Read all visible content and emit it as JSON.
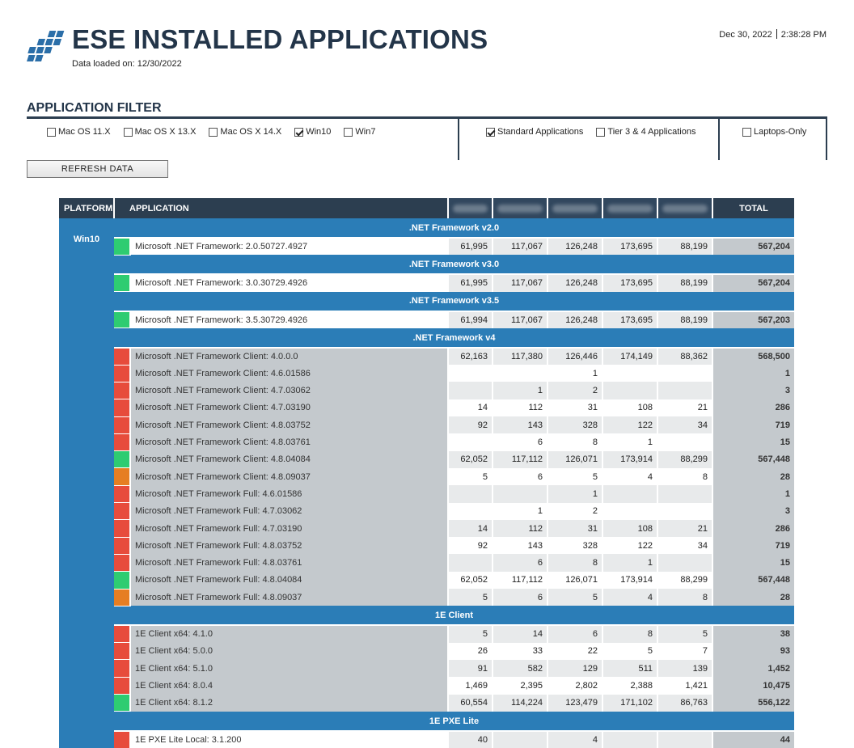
{
  "header": {
    "title": "ESE INSTALLED APPLICATIONS",
    "loaded": "Data loaded on: 12/30/2022",
    "date": "Dec 30, 2022",
    "time": "2:38:28 PM"
  },
  "filter": {
    "heading": "APPLICATION FILTER",
    "os": [
      {
        "label": "Mac OS 11.X",
        "checked": false
      },
      {
        "label": "Mac OS X 13.X",
        "checked": false
      },
      {
        "label": "Mac OS X 14.X",
        "checked": false
      },
      {
        "label": "Win10",
        "checked": true
      },
      {
        "label": "Win7",
        "checked": false
      }
    ],
    "app_types": [
      {
        "label": "Standard Applications",
        "checked": true
      },
      {
        "label": "Tier 3 & 4 Applications",
        "checked": false
      }
    ],
    "devices": [
      {
        "label": "Laptops-Only",
        "checked": false
      }
    ]
  },
  "refresh_label": "REFRESH  DATA",
  "table": {
    "columns": {
      "platform": "PLATFORM",
      "application": "APPLICATION",
      "total": "TOTAL"
    },
    "platform": "Win10",
    "status_colors": {
      "red": "#e74c3c",
      "green": "#2ecc71",
      "orange": "#e67e22"
    },
    "groups": [
      {
        "name": ".NET Framework v2.0",
        "rows": [
          {
            "status": "green",
            "app": "Microsoft .NET Framework: 2.0.50727.4927",
            "values": [
              "61,995",
              "117,067",
              "126,248",
              "173,695",
              "88,199"
            ],
            "total": "567,204"
          }
        ]
      },
      {
        "name": ".NET Framework v3.0",
        "rows": [
          {
            "status": "green",
            "app": "Microsoft .NET Framework: 3.0.30729.4926",
            "values": [
              "61,995",
              "117,067",
              "126,248",
              "173,695",
              "88,199"
            ],
            "total": "567,204"
          }
        ]
      },
      {
        "name": ".NET Framework v3.5",
        "rows": [
          {
            "status": "green",
            "app": "Microsoft .NET Framework: 3.5.30729.4926",
            "values": [
              "61,994",
              "117,067",
              "126,248",
              "173,695",
              "88,199"
            ],
            "total": "567,203"
          }
        ]
      },
      {
        "name": ".NET Framework v4",
        "rows": [
          {
            "status": "red",
            "app": "Microsoft .NET Framework Client: 4.0.0.0",
            "values": [
              "62,163",
              "117,380",
              "126,446",
              "174,149",
              "88,362"
            ],
            "total": "568,500"
          },
          {
            "status": "red",
            "app": "Microsoft .NET Framework Client: 4.6.01586",
            "values": [
              "",
              "",
              "1",
              "",
              ""
            ],
            "total": "1"
          },
          {
            "status": "red",
            "app": "Microsoft .NET Framework Client: 4.7.03062",
            "values": [
              "",
              "1",
              "2",
              "",
              ""
            ],
            "total": "3"
          },
          {
            "status": "red",
            "app": "Microsoft .NET Framework Client: 4.7.03190",
            "values": [
              "14",
              "112",
              "31",
              "108",
              "21"
            ],
            "total": "286"
          },
          {
            "status": "red",
            "app": "Microsoft .NET Framework Client: 4.8.03752",
            "values": [
              "92",
              "143",
              "328",
              "122",
              "34"
            ],
            "total": "719"
          },
          {
            "status": "red",
            "app": "Microsoft .NET Framework Client: 4.8.03761",
            "values": [
              "",
              "6",
              "8",
              "1",
              ""
            ],
            "total": "15"
          },
          {
            "status": "green",
            "app": "Microsoft .NET Framework Client: 4.8.04084",
            "values": [
              "62,052",
              "117,112",
              "126,071",
              "173,914",
              "88,299"
            ],
            "total": "567,448"
          },
          {
            "status": "orange",
            "app": "Microsoft .NET Framework Client: 4.8.09037",
            "values": [
              "5",
              "6",
              "5",
              "4",
              "8"
            ],
            "total": "28"
          },
          {
            "status": "red",
            "app": "Microsoft .NET Framework Full: 4.6.01586",
            "values": [
              "",
              "",
              "1",
              "",
              ""
            ],
            "total": "1"
          },
          {
            "status": "red",
            "app": "Microsoft .NET Framework Full: 4.7.03062",
            "values": [
              "",
              "1",
              "2",
              "",
              ""
            ],
            "total": "3"
          },
          {
            "status": "red",
            "app": "Microsoft .NET Framework Full: 4.7.03190",
            "values": [
              "14",
              "112",
              "31",
              "108",
              "21"
            ],
            "total": "286"
          },
          {
            "status": "red",
            "app": "Microsoft .NET Framework Full: 4.8.03752",
            "values": [
              "92",
              "143",
              "328",
              "122",
              "34"
            ],
            "total": "719"
          },
          {
            "status": "red",
            "app": "Microsoft .NET Framework Full: 4.8.03761",
            "values": [
              "",
              "6",
              "8",
              "1",
              ""
            ],
            "total": "15"
          },
          {
            "status": "green",
            "app": "Microsoft .NET Framework Full: 4.8.04084",
            "values": [
              "62,052",
              "117,112",
              "126,071",
              "173,914",
              "88,299"
            ],
            "total": "567,448"
          },
          {
            "status": "orange",
            "app": "Microsoft .NET Framework Full: 4.8.09037",
            "values": [
              "5",
              "6",
              "5",
              "4",
              "8"
            ],
            "total": "28"
          }
        ]
      },
      {
        "name": "1E Client",
        "rows": [
          {
            "status": "red",
            "app": "1E Client x64: 4.1.0",
            "values": [
              "5",
              "14",
              "6",
              "8",
              "5"
            ],
            "total": "38"
          },
          {
            "status": "red",
            "app": "1E Client x64: 5.0.0",
            "values": [
              "26",
              "33",
              "22",
              "5",
              "7"
            ],
            "total": "93"
          },
          {
            "status": "red",
            "app": "1E Client x64: 5.1.0",
            "values": [
              "91",
              "582",
              "129",
              "511",
              "139"
            ],
            "total": "1,452"
          },
          {
            "status": "red",
            "app": "1E Client x64: 8.0.4",
            "values": [
              "1,469",
              "2,395",
              "2,802",
              "2,388",
              "1,421"
            ],
            "total": "10,475"
          },
          {
            "status": "green",
            "app": "1E Client x64: 8.1.2",
            "values": [
              "60,554",
              "114,224",
              "123,479",
              "171,102",
              "86,763"
            ],
            "total": "556,122"
          }
        ]
      },
      {
        "name": "1E PXE Lite",
        "rows": [
          {
            "status": "red",
            "app": "1E PXE Lite Local: 3.1.200",
            "values": [
              "40",
              "",
              "4",
              "",
              ""
            ],
            "total": "44"
          }
        ]
      }
    ]
  }
}
